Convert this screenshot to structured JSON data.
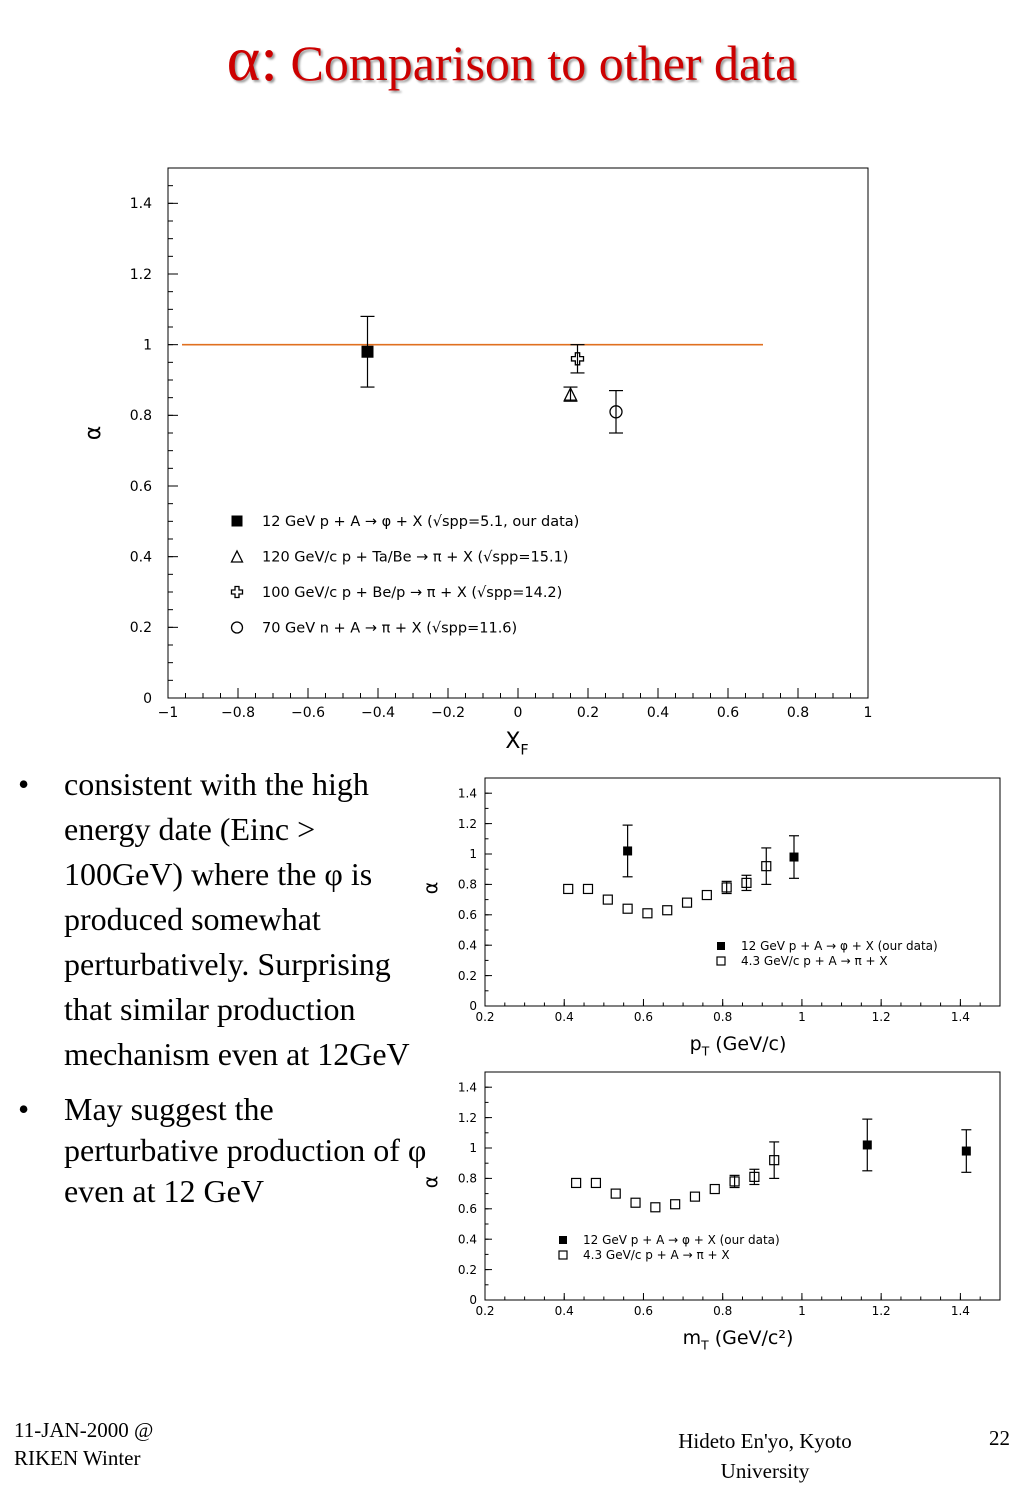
{
  "slide": {
    "title_symbol": "α:",
    "title_text": "Comparison to other data",
    "bullets": [
      "consistent with the high energy date (Einc > 100GeV) where the φ is produced somewhat perturbatively. Surprising that similar production mechanism even at 12GeV",
      "May suggest the perturbative production of φ even at 12 GeV"
    ],
    "footer_left_line1": "11-JAN-2000 @",
    "footer_left_line2": "RIKEN Winter",
    "footer_center_line1": "Hideto En'yo, Kyoto",
    "footer_center_line2": "University",
    "page_number": "22",
    "colors": {
      "title": "#cc0000",
      "reference_line": "#e07020"
    }
  },
  "chart_data": [
    {
      "type": "scatter",
      "xlabel": "X_F",
      "ylabel": "α",
      "xlim": [
        -1,
        1
      ],
      "ylim": [
        0,
        1.5
      ],
      "x_ticks": [
        "-1",
        "-0.8",
        "-0.6",
        "-0.4",
        "-0.2",
        "0",
        "0.2",
        "0.4",
        "0.6",
        "0.8",
        "1"
      ],
      "y_ticks": [
        "0",
        "0.2",
        "0.4",
        "0.6",
        "0.8",
        "1",
        "1.2",
        "1.4"
      ],
      "reference_line": {
        "y": 1.0,
        "x_range": [
          -0.96,
          0.7
        ]
      },
      "series": [
        {
          "name": "12 GeV    p + A       → φ + X (√spp=5.1, our data)",
          "marker": "filled-square",
          "points": [
            {
              "x": -0.43,
              "y": 0.98,
              "err": 0.1
            }
          ]
        },
        {
          "name": "120 GeV/c  p + Ta/Be  → π + X (√spp=15.1)",
          "marker": "open-triangle",
          "points": [
            {
              "x": 0.15,
              "y": 0.86,
              "err": 0.02
            }
          ]
        },
        {
          "name": "100 GeV/c  p + Be/p   → π + X (√spp=14.2)",
          "marker": "open-cross",
          "points": [
            {
              "x": 0.17,
              "y": 0.96,
              "err": 0.04
            }
          ]
        },
        {
          "name": "70 GeV    n + A       → π + X (√spp=11.6)",
          "marker": "open-circle",
          "points": [
            {
              "x": 0.28,
              "y": 0.81,
              "err": 0.06
            }
          ]
        }
      ],
      "legend": "lower-left"
    },
    {
      "type": "scatter",
      "xlabel": "pT (GeV/c)",
      "ylabel": "α",
      "xlim": [
        0.2,
        1.5
      ],
      "ylim": [
        0,
        1.5
      ],
      "x_ticks": [
        "0.2",
        "0.4",
        "0.6",
        "0.8",
        "1",
        "1.2",
        "1.4"
      ],
      "y_ticks": [
        "0",
        "0.2",
        "0.4",
        "0.6",
        "0.8",
        "1",
        "1.2",
        "1.4"
      ],
      "series": [
        {
          "name": "12 GeV  p + A → φ + X (our data)",
          "marker": "filled-square",
          "points": [
            {
              "x": 0.56,
              "y": 1.02,
              "err": 0.17
            },
            {
              "x": 0.98,
              "y": 0.98,
              "err": 0.14
            }
          ]
        },
        {
          "name": "4.3 GeV/c p + A → π + X",
          "marker": "open-square",
          "points": [
            {
              "x": 0.41,
              "y": 0.77
            },
            {
              "x": 0.46,
              "y": 0.77
            },
            {
              "x": 0.51,
              "y": 0.7
            },
            {
              "x": 0.56,
              "y": 0.64
            },
            {
              "x": 0.61,
              "y": 0.61
            },
            {
              "x": 0.66,
              "y": 0.63
            },
            {
              "x": 0.71,
              "y": 0.68
            },
            {
              "x": 0.76,
              "y": 0.73
            },
            {
              "x": 0.81,
              "y": 0.78,
              "err": 0.04
            },
            {
              "x": 0.86,
              "y": 0.81,
              "err": 0.05
            },
            {
              "x": 0.91,
              "y": 0.92,
              "err": 0.12
            }
          ]
        }
      ],
      "legend": "lower-right"
    },
    {
      "type": "scatter",
      "xlabel": "mT (GeV/c²)",
      "ylabel": "α",
      "xlim": [
        0.2,
        1.5
      ],
      "ylim": [
        0,
        1.5
      ],
      "x_ticks": [
        "0.2",
        "0.4",
        "0.6",
        "0.8",
        "1",
        "1.2",
        "1.4"
      ],
      "y_ticks": [
        "0",
        "0.2",
        "0.4",
        "0.6",
        "0.8",
        "1",
        "1.2",
        "1.4"
      ],
      "series": [
        {
          "name": "12 GeV  p + A → φ + X (our data)",
          "marker": "filled-square",
          "points": [
            {
              "x": 1.165,
              "y": 1.02,
              "err": 0.17
            },
            {
              "x": 1.415,
              "y": 0.98,
              "err": 0.14
            }
          ]
        },
        {
          "name": "4.3 GeV/c p + A → π + X",
          "marker": "open-square",
          "points": [
            {
              "x": 0.43,
              "y": 0.77
            },
            {
              "x": 0.48,
              "y": 0.77
            },
            {
              "x": 0.53,
              "y": 0.7
            },
            {
              "x": 0.58,
              "y": 0.64
            },
            {
              "x": 0.63,
              "y": 0.61
            },
            {
              "x": 0.68,
              "y": 0.63
            },
            {
              "x": 0.73,
              "y": 0.68
            },
            {
              "x": 0.78,
              "y": 0.73
            },
            {
              "x": 0.83,
              "y": 0.78,
              "err": 0.04
            },
            {
              "x": 0.88,
              "y": 0.81,
              "err": 0.05
            },
            {
              "x": 0.93,
              "y": 0.92,
              "err": 0.12
            }
          ]
        }
      ],
      "legend": "lower-left"
    }
  ]
}
